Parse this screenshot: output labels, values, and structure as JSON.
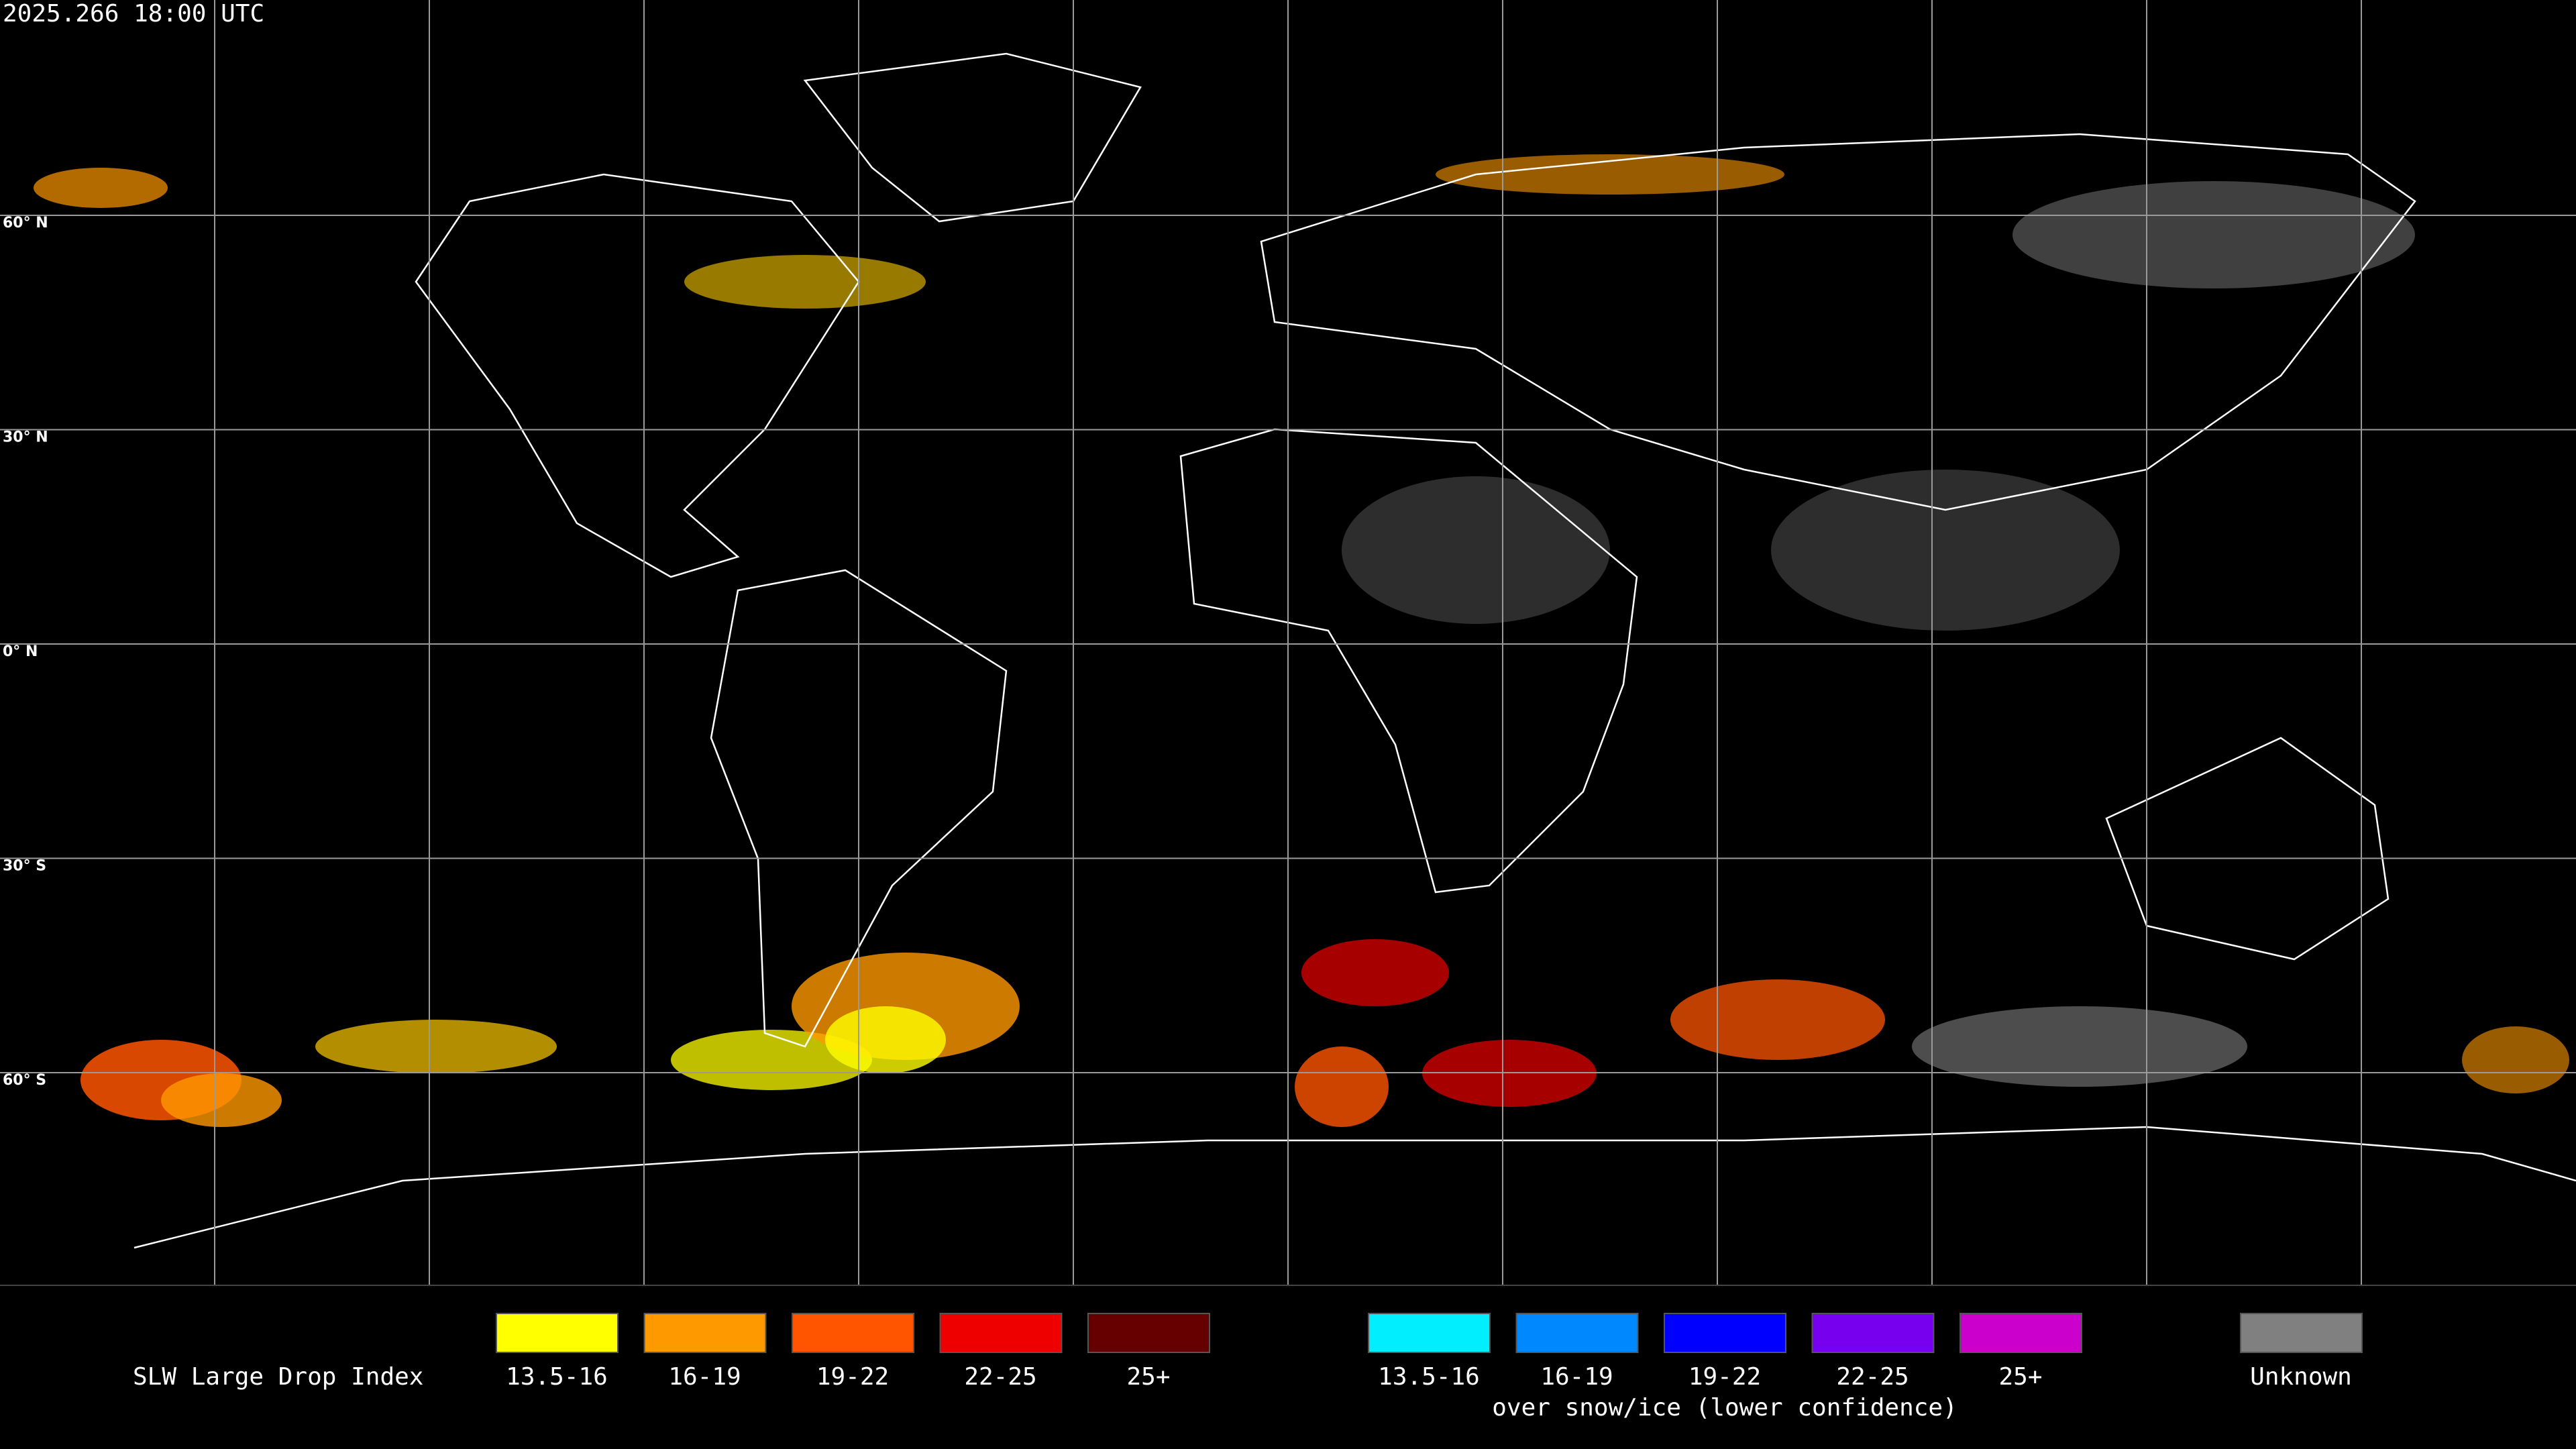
{
  "header": {
    "timestamp": "2025.266 18:00 UTC"
  },
  "map": {
    "lat_labels": [
      "60° N",
      "30° N",
      "0° N",
      "30° S",
      "60° S"
    ]
  },
  "legend": {
    "title": "SLW Large Drop Index",
    "items": [
      {
        "label": "13.5-16",
        "color": "#ffff00"
      },
      {
        "label": "16-19",
        "color": "#ff9900"
      },
      {
        "label": "19-22",
        "color": "#ff5500"
      },
      {
        "label": "22-25",
        "color": "#ee0000"
      },
      {
        "label": "25+",
        "color": "#660000"
      }
    ],
    "snow_items": [
      {
        "label": "13.5-16",
        "color": "#00eeff"
      },
      {
        "label": "16-19",
        "color": "#0088ff"
      },
      {
        "label": "19-22",
        "color": "#0000ff"
      },
      {
        "label": "22-25",
        "color": "#7700ee"
      },
      {
        "label": "25+",
        "color": "#cc00cc"
      }
    ],
    "snow_caption": "over snow/ice (lower confidence)",
    "unknown": {
      "label": "Unknown",
      "color": "#808080"
    }
  }
}
